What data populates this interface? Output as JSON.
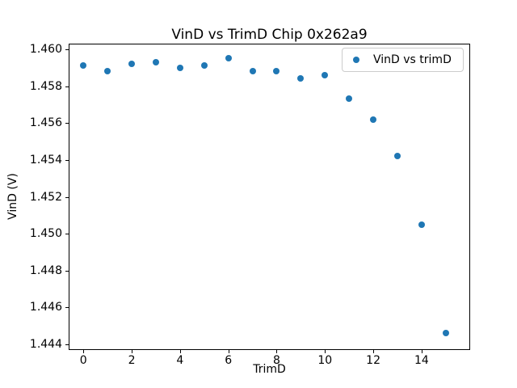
{
  "chart_data": {
    "type": "scatter",
    "title": "VinD vs TrimD Chip 0x262a9",
    "xlabel": "TrimD",
    "ylabel": "VinD (V)",
    "legend": {
      "label": "VinD vs trimD",
      "position": "upper right"
    },
    "x": [
      0,
      1,
      2,
      3,
      4,
      5,
      6,
      7,
      8,
      9,
      10,
      11,
      12,
      13,
      14,
      15
    ],
    "y": [
      1.4591,
      1.4588,
      1.4592,
      1.4593,
      1.459,
      1.4591,
      1.4595,
      1.4588,
      1.4588,
      1.4584,
      1.4586,
      1.4573,
      1.4562,
      1.4542,
      1.4505,
      1.4446
    ],
    "xlim": [
      -0.61,
      16.01
    ],
    "ylim": [
      1.4437,
      1.4603
    ],
    "xticks": [
      {
        "value": 0,
        "label": "0"
      },
      {
        "value": 2,
        "label": "2"
      },
      {
        "value": 4,
        "label": "4"
      },
      {
        "value": 6,
        "label": "6"
      },
      {
        "value": 8,
        "label": "8"
      },
      {
        "value": 10,
        "label": "10"
      },
      {
        "value": 12,
        "label": "12"
      },
      {
        "value": 14,
        "label": "14"
      }
    ],
    "yticks": [
      {
        "value": 1.444,
        "label": "1.444"
      },
      {
        "value": 1.446,
        "label": "1.446"
      },
      {
        "value": 1.448,
        "label": "1.448"
      },
      {
        "value": 1.45,
        "label": "1.450"
      },
      {
        "value": 1.452,
        "label": "1.452"
      },
      {
        "value": 1.454,
        "label": "1.454"
      },
      {
        "value": 1.456,
        "label": "1.456"
      },
      {
        "value": 1.458,
        "label": "1.458"
      },
      {
        "value": 1.46,
        "label": "1.460"
      }
    ],
    "marker_color": "#1f77b4",
    "background_color": "#ffffff",
    "spine_color": "#000000",
    "legend_border_color": "#cccccc",
    "grid": false
  }
}
